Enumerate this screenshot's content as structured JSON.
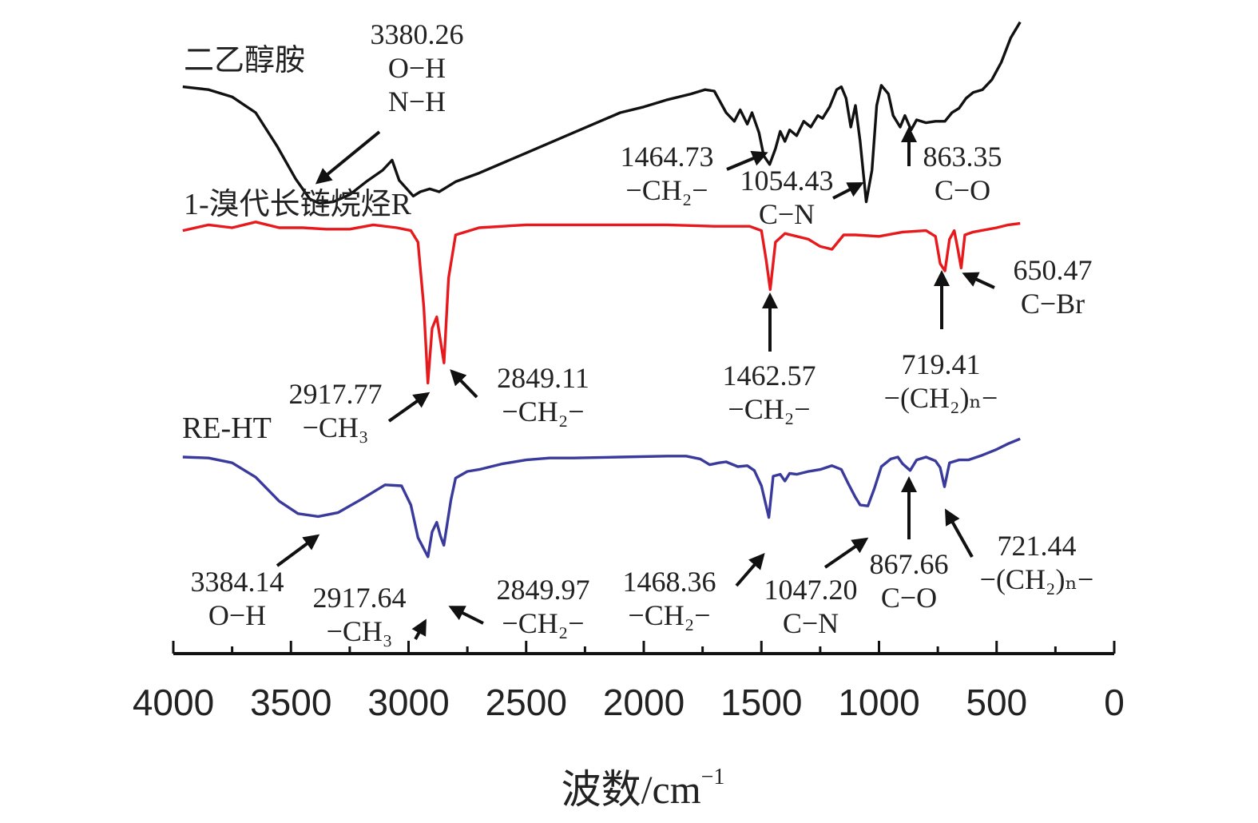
{
  "chart_data": {
    "type": "line",
    "title": "",
    "xlabel": "波数/cm",
    "xlabel_superscript": "−1",
    "ylabel": "",
    "xlim": [
      4000,
      0
    ],
    "x_reversed": true,
    "x_ticks": [
      4000,
      3500,
      3000,
      2500,
      2000,
      1500,
      1000,
      500,
      0
    ],
    "grid": false,
    "legend": "none",
    "series": [
      {
        "name": "二乙醇胺",
        "color": "#111111",
        "label_color": "#333333",
        "points": [
          [
            3960,
            0.02
          ],
          [
            3850,
            0.04
          ],
          [
            3750,
            0.09
          ],
          [
            3650,
            0.2
          ],
          [
            3560,
            0.43
          ],
          [
            3480,
            0.66
          ],
          [
            3420,
            0.8
          ],
          [
            3380,
            0.83
          ],
          [
            3320,
            0.82
          ],
          [
            3250,
            0.77
          ],
          [
            3180,
            0.68
          ],
          [
            3110,
            0.6
          ],
          [
            3070,
            0.53
          ],
          [
            3040,
            0.67
          ],
          [
            2980,
            0.78
          ],
          [
            2950,
            0.75
          ],
          [
            2910,
            0.73
          ],
          [
            2870,
            0.75
          ],
          [
            2850,
            0.73
          ],
          [
            2800,
            0.68
          ],
          [
            2700,
            0.62
          ],
          [
            2600,
            0.55
          ],
          [
            2500,
            0.48
          ],
          [
            2400,
            0.41
          ],
          [
            2300,
            0.34
          ],
          [
            2200,
            0.27
          ],
          [
            2100,
            0.2
          ],
          [
            2000,
            0.16
          ],
          [
            1900,
            0.11
          ],
          [
            1800,
            0.07
          ],
          [
            1740,
            0.04
          ],
          [
            1700,
            0.05
          ],
          [
            1650,
            0.2
          ],
          [
            1615,
            0.26
          ],
          [
            1590,
            0.18
          ],
          [
            1560,
            0.28
          ],
          [
            1540,
            0.2
          ],
          [
            1510,
            0.34
          ],
          [
            1490,
            0.5
          ],
          [
            1464.73,
            0.56
          ],
          [
            1440,
            0.45
          ],
          [
            1420,
            0.33
          ],
          [
            1400,
            0.4
          ],
          [
            1380,
            0.32
          ],
          [
            1350,
            0.36
          ],
          [
            1320,
            0.26
          ],
          [
            1290,
            0.3
          ],
          [
            1260,
            0.22
          ],
          [
            1240,
            0.24
          ],
          [
            1210,
            0.16
          ],
          [
            1180,
            0.04
          ],
          [
            1160,
            0.02
          ],
          [
            1140,
            0.1
          ],
          [
            1120,
            0.3
          ],
          [
            1100,
            0.15
          ],
          [
            1080,
            0.4
          ],
          [
            1054.43,
            0.82
          ],
          [
            1030,
            0.6
          ],
          [
            1010,
            0.15
          ],
          [
            990,
            0.01
          ],
          [
            960,
            0.07
          ],
          [
            940,
            0.22
          ],
          [
            910,
            0.3
          ],
          [
            890,
            0.22
          ],
          [
            863.35,
            0.32
          ],
          [
            840,
            0.25
          ],
          [
            800,
            0.27
          ],
          [
            760,
            0.26
          ],
          [
            720,
            0.26
          ],
          [
            690,
            0.2
          ],
          [
            660,
            0.17
          ],
          [
            630,
            0.1
          ],
          [
            600,
            0.06
          ],
          [
            560,
            0.04
          ],
          [
            520,
            -0.03
          ],
          [
            480,
            -0.15
          ],
          [
            440,
            -0.32
          ],
          [
            400,
            -0.43
          ]
        ]
      },
      {
        "name": "1-溴代长链烷烃R",
        "color": "#e8191c",
        "label_color": "#e0182a",
        "points": [
          [
            3960,
            0.02
          ],
          [
            3850,
            -0.02
          ],
          [
            3750,
            0.0
          ],
          [
            3650,
            -0.04
          ],
          [
            3550,
            0.0
          ],
          [
            3450,
            0.0
          ],
          [
            3350,
            0.01
          ],
          [
            3250,
            0.01
          ],
          [
            3150,
            -0.02
          ],
          [
            3050,
            0.0
          ],
          [
            2990,
            0.02
          ],
          [
            2960,
            0.1
          ],
          [
            2935,
            0.55
          ],
          [
            2917.77,
            1.08
          ],
          [
            2900,
            0.7
          ],
          [
            2880,
            0.62
          ],
          [
            2865,
            0.78
          ],
          [
            2849.11,
            0.94
          ],
          [
            2830,
            0.35
          ],
          [
            2800,
            0.05
          ],
          [
            2700,
            0.0
          ],
          [
            2500,
            -0.02
          ],
          [
            2300,
            -0.02
          ],
          [
            2100,
            -0.02
          ],
          [
            1900,
            -0.02
          ],
          [
            1700,
            -0.01
          ],
          [
            1550,
            -0.01
          ],
          [
            1500,
            0.02
          ],
          [
            1480,
            0.22
          ],
          [
            1462.57,
            0.43
          ],
          [
            1440,
            0.1
          ],
          [
            1400,
            0.04
          ],
          [
            1300,
            0.08
          ],
          [
            1250,
            0.13
          ],
          [
            1200,
            0.15
          ],
          [
            1150,
            0.05
          ],
          [
            1100,
            0.05
          ],
          [
            1000,
            0.06
          ],
          [
            900,
            0.03
          ],
          [
            800,
            0.02
          ],
          [
            760,
            0.06
          ],
          [
            740,
            0.25
          ],
          [
            719.41,
            0.3
          ],
          [
            700,
            0.08
          ],
          [
            680,
            0.02
          ],
          [
            665,
            0.15
          ],
          [
            650.47,
            0.28
          ],
          [
            635,
            0.05
          ],
          [
            600,
            0.03
          ],
          [
            500,
            0.0
          ],
          [
            450,
            -0.02
          ],
          [
            400,
            -0.03
          ]
        ]
      },
      {
        "name": "RE-HT",
        "color": "#3a3a9c",
        "label_color": "#3b3c94",
        "points": [
          [
            3960,
            0.0
          ],
          [
            3850,
            0.01
          ],
          [
            3750,
            0.06
          ],
          [
            3650,
            0.21
          ],
          [
            3550,
            0.46
          ],
          [
            3470,
            0.59
          ],
          [
            3384.14,
            0.62
          ],
          [
            3300,
            0.58
          ],
          [
            3200,
            0.44
          ],
          [
            3100,
            0.29
          ],
          [
            3030,
            0.3
          ],
          [
            2990,
            0.5
          ],
          [
            2960,
            0.84
          ],
          [
            2917.64,
            1.04
          ],
          [
            2900,
            0.78
          ],
          [
            2880,
            0.68
          ],
          [
            2865,
            0.82
          ],
          [
            2849.97,
            0.92
          ],
          [
            2820,
            0.45
          ],
          [
            2800,
            0.22
          ],
          [
            2750,
            0.15
          ],
          [
            2700,
            0.13
          ],
          [
            2600,
            0.07
          ],
          [
            2500,
            0.03
          ],
          [
            2400,
            0.01
          ],
          [
            2300,
            0.01
          ],
          [
            2100,
            0.0
          ],
          [
            1900,
            -0.01
          ],
          [
            1820,
            -0.01
          ],
          [
            1760,
            0.02
          ],
          [
            1720,
            0.08
          ],
          [
            1680,
            0.06
          ],
          [
            1650,
            0.05
          ],
          [
            1600,
            0.1
          ],
          [
            1560,
            0.09
          ],
          [
            1530,
            0.14
          ],
          [
            1500,
            0.3
          ],
          [
            1468.36,
            0.63
          ],
          [
            1450,
            0.2
          ],
          [
            1420,
            0.18
          ],
          [
            1400,
            0.25
          ],
          [
            1380,
            0.17
          ],
          [
            1350,
            0.18
          ],
          [
            1300,
            0.15
          ],
          [
            1250,
            0.13
          ],
          [
            1200,
            0.09
          ],
          [
            1160,
            0.13
          ],
          [
            1130,
            0.28
          ],
          [
            1100,
            0.42
          ],
          [
            1080,
            0.5
          ],
          [
            1047.2,
            0.51
          ],
          [
            1020,
            0.33
          ],
          [
            990,
            0.1
          ],
          [
            950,
            0.02
          ],
          [
            920,
            0.0
          ],
          [
            900,
            0.07
          ],
          [
            867.66,
            0.14
          ],
          [
            840,
            0.03
          ],
          [
            800,
            0.0
          ],
          [
            760,
            0.04
          ],
          [
            740,
            0.11
          ],
          [
            721.44,
            0.31
          ],
          [
            700,
            0.06
          ],
          [
            660,
            0.03
          ],
          [
            620,
            0.03
          ],
          [
            560,
            -0.02
          ],
          [
            500,
            -0.08
          ],
          [
            450,
            -0.14
          ],
          [
            400,
            -0.19
          ]
        ]
      }
    ],
    "annotations": [
      {
        "lines": [
          "3380.26",
          "O−H",
          "N−H"
        ],
        "series": 0,
        "target_x": 3380
      },
      {
        "lines": [
          "1464.73",
          "−CH₂−"
        ],
        "series": 0,
        "target_x": 1464.73
      },
      {
        "lines": [
          "1054.43",
          "C−N"
        ],
        "series": 0,
        "target_x": 1054.43
      },
      {
        "lines": [
          "863.35",
          "C−O"
        ],
        "series": 0,
        "target_x": 863.35
      },
      {
        "lines": [
          "2917.77",
          "−CH₃"
        ],
        "series": 1,
        "target_x": 2917.77
      },
      {
        "lines": [
          "2849.11",
          "−CH₂−"
        ],
        "series": 1,
        "target_x": 2849.11
      },
      {
        "lines": [
          "1462.57",
          "−CH₂−"
        ],
        "series": 1,
        "target_x": 1462.57
      },
      {
        "lines": [
          "719.41",
          "−(CH₂)ₙ−"
        ],
        "series": 1,
        "target_x": 719.41
      },
      {
        "lines": [
          "650.47",
          "C−Br"
        ],
        "series": 1,
        "target_x": 650.47
      },
      {
        "lines": [
          "3384.14",
          "O−H"
        ],
        "series": 2,
        "target_x": 3384.14
      },
      {
        "lines": [
          "2917.64",
          "−CH₃"
        ],
        "series": 2,
        "target_x": 2917.64
      },
      {
        "lines": [
          "2849.97",
          "−CH₂−"
        ],
        "series": 2,
        "target_x": 2849.97
      },
      {
        "lines": [
          "1468.36",
          "−CH₂−"
        ],
        "series": 2,
        "target_x": 1468.36
      },
      {
        "lines": [
          "1047.20",
          "C−N"
        ],
        "series": 2,
        "target_x": 1047.2
      },
      {
        "lines": [
          "867.66",
          "C−O"
        ],
        "series": 2,
        "target_x": 867.66
      },
      {
        "lines": [
          "721.44",
          "−(CH₂)ₙ−"
        ],
        "series": 2,
        "target_x": 721.44
      }
    ]
  }
}
